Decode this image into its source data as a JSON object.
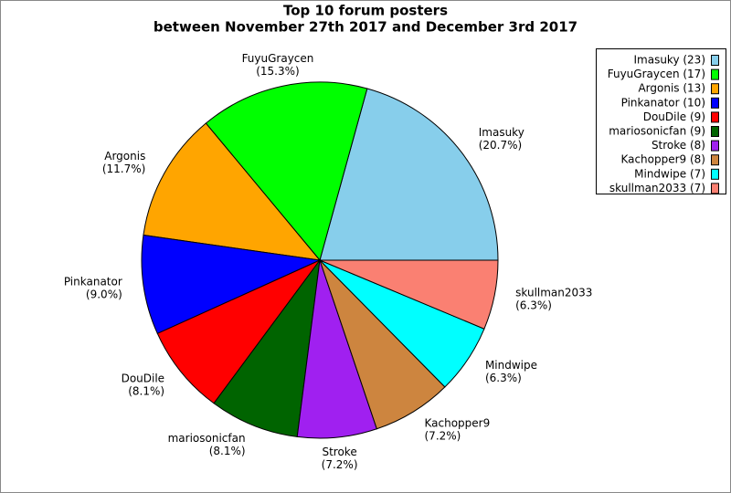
{
  "chart_data": {
    "type": "pie",
    "title": "Top 10 forum posters",
    "subtitle": "between November 27th 2017 and December 3rd 2017",
    "categories": [
      "Imasuky",
      "FuyuGraycen",
      "Argonis",
      "Pinkanator",
      "DouDile",
      "mariosonicfan",
      "Stroke",
      "Kachopper9",
      "Mindwipe",
      "skullman2033"
    ],
    "values": [
      20.7,
      15.3,
      11.7,
      9.0,
      8.1,
      8.1,
      7.2,
      7.2,
      6.3,
      6.3
    ],
    "value_labels": [
      "(20.7%)",
      "(15.3%)",
      "(11.7%)",
      "(9.0%)",
      "(8.1%)",
      "(8.1%)",
      "(7.2%)",
      "(7.2%)",
      "(6.3%)",
      "(6.3%)"
    ],
    "legend_labels": [
      "Imasuky (23)",
      "FuyuGraycen (17)",
      "Argonis (13)",
      "Pinkanator (10)",
      "DouDile (9)",
      "mariosonicfan (9)",
      "Stroke (8)",
      "Kachopper9 (8)",
      "Mindwipe (7)",
      "skullman2033 (7)"
    ],
    "colors": [
      "#87ceeb",
      "#00ff00",
      "#ffa500",
      "#0000ff",
      "#ff0000",
      "#006400",
      "#a020f0",
      "#cd853f",
      "#00ffff",
      "#fa8072"
    ],
    "legend": "upper right"
  }
}
